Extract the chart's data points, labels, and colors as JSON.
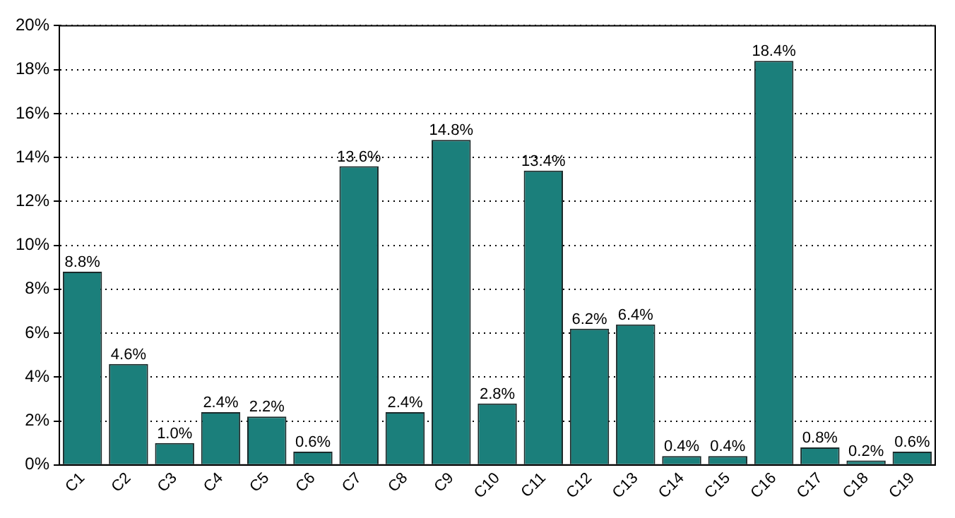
{
  "chart_data": {
    "type": "bar",
    "categories": [
      "C1",
      "C2",
      "C3",
      "C4",
      "C5",
      "C6",
      "C7",
      "C8",
      "C9",
      "C10",
      "C11",
      "C12",
      "C13",
      "C14",
      "C15",
      "C16",
      "C17",
      "C18",
      "C19"
    ],
    "values": [
      8.8,
      4.6,
      1.0,
      2.4,
      2.2,
      0.6,
      13.6,
      2.4,
      14.8,
      2.8,
      13.4,
      6.2,
      6.4,
      0.4,
      0.4,
      18.4,
      0.8,
      0.2,
      0.6
    ],
    "value_labels": [
      "8.8%",
      "4.6%",
      "1.0%",
      "2.4%",
      "2.2%",
      "0.6%",
      "13.6%",
      "2.4%",
      "14.8%",
      "2.8%",
      "13.4%",
      "6.2%",
      "6.4%",
      "0.4%",
      "0.4%",
      "18.4%",
      "0.8%",
      "0.2%",
      "0.6%"
    ],
    "color": "#1b7f7b",
    "ylim": [
      0,
      20
    ],
    "yticks": [
      {
        "value": 0,
        "label": "0%"
      },
      {
        "value": 2,
        "label": "2%"
      },
      {
        "value": 4,
        "label": "4%"
      },
      {
        "value": 6,
        "label": "6%"
      },
      {
        "value": 8,
        "label": "8%"
      },
      {
        "value": 10,
        "label": "10%"
      },
      {
        "value": 12,
        "label": "12%"
      },
      {
        "value": 14,
        "label": "14%"
      },
      {
        "value": 16,
        "label": "16%"
      },
      {
        "value": 18,
        "label": "18%"
      },
      {
        "value": 20,
        "label": "20%"
      }
    ],
    "grid": "y",
    "legend": false
  }
}
